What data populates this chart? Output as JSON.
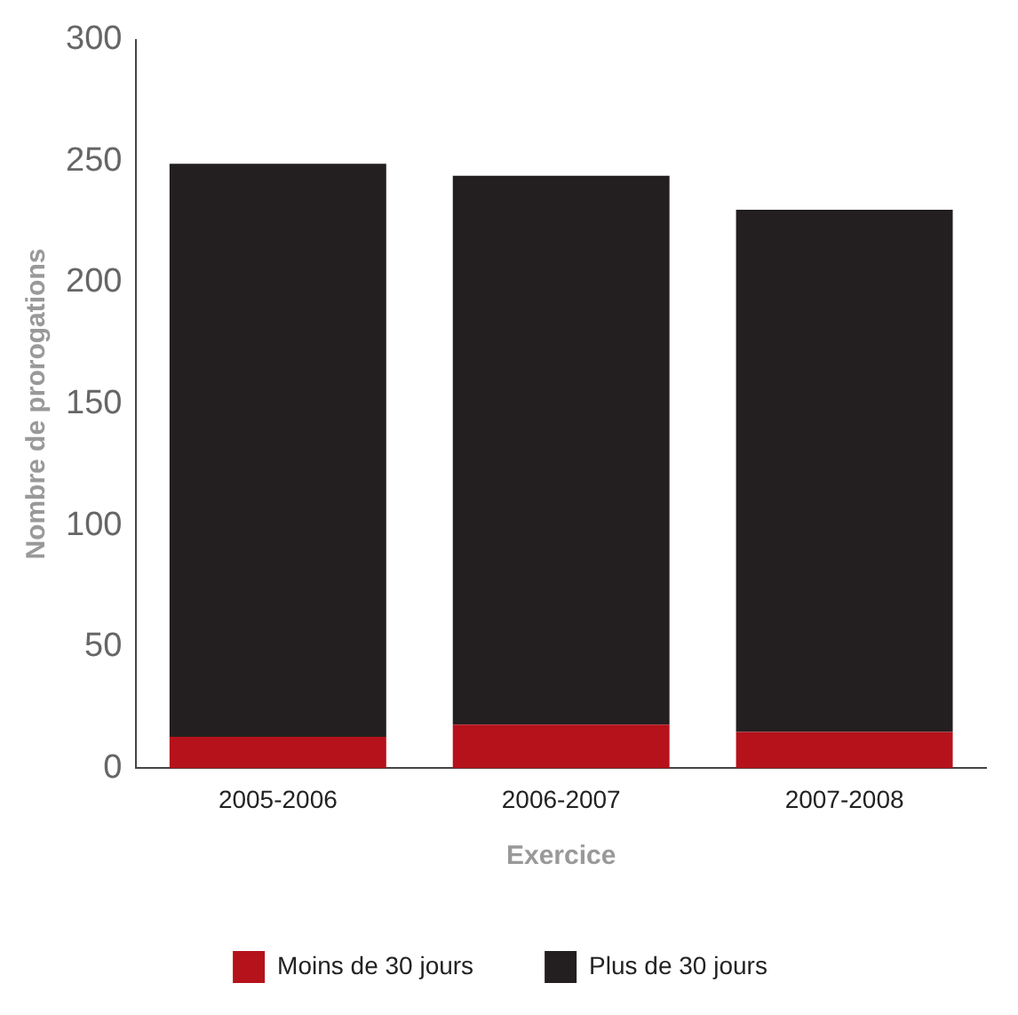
{
  "chart_data": {
    "type": "bar",
    "stacked": true,
    "xlabel": "Exercice",
    "ylabel": "Nombre de prorogations",
    "categories": [
      "2005-2006",
      "2006-2007",
      "2007-2008"
    ],
    "series": [
      {
        "name": "Moins de 30 jours",
        "color": "#b5121b",
        "values": [
          13,
          18,
          15
        ]
      },
      {
        "name": "Plus de 30 jours",
        "color": "#231f20",
        "values": [
          236,
          226,
          215
        ]
      }
    ],
    "ylim": [
      0,
      300
    ],
    "yticks": [
      0,
      50,
      100,
      150,
      200,
      250,
      300
    ],
    "grid": false,
    "legend": "bottom"
  }
}
